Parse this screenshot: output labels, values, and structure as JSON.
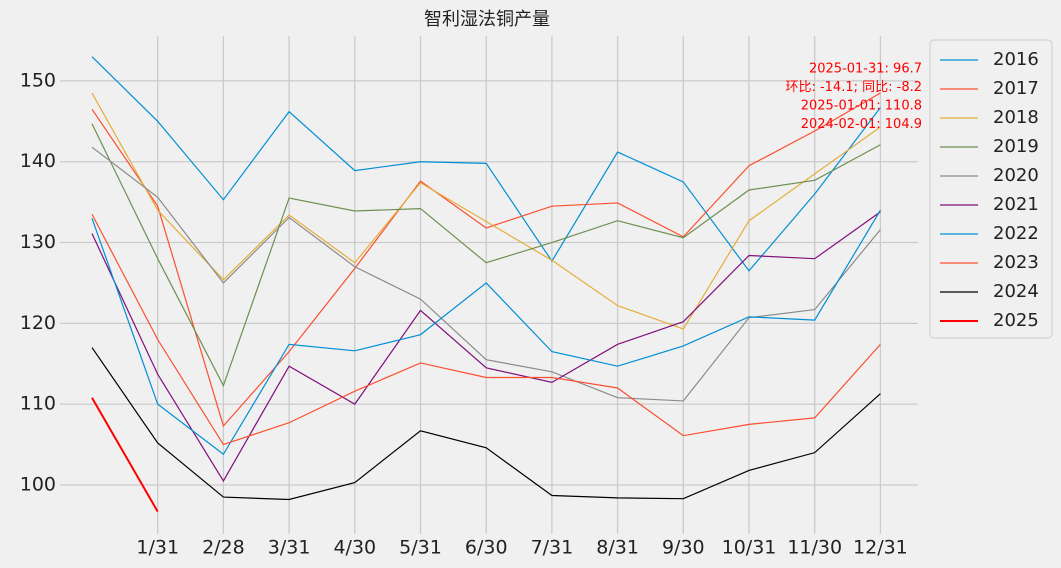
{
  "chart_data": {
    "type": "line",
    "title": "智利湿法铜产量",
    "categories": [
      null,
      "1/31",
      "2/28",
      "3/31",
      "4/30",
      "5/31",
      "6/30",
      "7/31",
      "8/31",
      "9/30",
      "10/31",
      "11/30",
      "12/31"
    ],
    "series": [
      {
        "name": "2016",
        "color": "#008fd5",
        "values": [
          153.0,
          145.0,
          135.3,
          146.2,
          138.9,
          140.0,
          139.8,
          127.7,
          141.2,
          137.5,
          126.5,
          136.0,
          146.7
        ]
      },
      {
        "name": "2017",
        "color": "#fc4f30",
        "values": [
          146.5,
          134.5,
          107.3,
          116.5,
          126.8,
          137.6,
          131.8,
          134.5,
          134.9,
          130.7,
          139.5,
          143.8,
          148.5
        ]
      },
      {
        "name": "2018",
        "color": "#e5ae38",
        "values": [
          148.5,
          134.0,
          125.4,
          133.4,
          127.5,
          137.4,
          132.6,
          127.8,
          122.2,
          119.3,
          132.7,
          138.5,
          144.3
        ]
      },
      {
        "name": "2019",
        "color": "#6d904f",
        "values": [
          144.7,
          128.0,
          112.3,
          135.5,
          133.9,
          134.2,
          127.5,
          130.0,
          132.7,
          130.6,
          136.5,
          137.7,
          142.1
        ]
      },
      {
        "name": "2020",
        "color": "#8b8b8b",
        "values": [
          141.8,
          135.6,
          125.0,
          133.1,
          127.0,
          123.0,
          115.5,
          114.0,
          110.8,
          110.4,
          120.7,
          121.7,
          131.6
        ]
      },
      {
        "name": "2021",
        "color": "#810f7c",
        "values": [
          131.1,
          113.7,
          100.5,
          114.7,
          110.0,
          121.6,
          114.5,
          112.7,
          117.4,
          120.2,
          128.4,
          128.0,
          133.8
        ]
      },
      {
        "name": "2022",
        "color": "#008fd5",
        "values": [
          133.0,
          110.0,
          103.8,
          117.4,
          116.6,
          118.6,
          125.0,
          116.5,
          114.7,
          117.2,
          120.8,
          120.4,
          134.0
        ]
      },
      {
        "name": "2023",
        "color": "#fc4f30",
        "values": [
          133.5,
          118.0,
          105.0,
          107.7,
          111.6,
          115.1,
          113.3,
          113.3,
          112.0,
          106.1,
          107.5,
          108.3,
          117.4
        ]
      },
      {
        "name": "2024",
        "color": "#000000",
        "values": [
          117.0,
          105.2,
          98.5,
          98.2,
          100.3,
          106.7,
          104.6,
          98.7,
          98.4,
          98.3,
          101.8,
          104.0,
          111.3
        ]
      },
      {
        "name": "2025",
        "color": "#ff0000",
        "values": [
          110.8,
          96.7,
          null,
          null,
          null,
          null,
          null,
          null,
          null,
          null,
          null,
          null,
          null
        ]
      }
    ],
    "annotations": [
      "2025-01-31: 96.7",
      "环比: -14.1; 同比: -8.2",
      "2025-01-01: 110.8",
      "2024-02-01: 104.9"
    ],
    "ylim": [
      92.2,
      156.3
    ],
    "yticks": [
      100,
      110,
      120,
      130,
      140,
      150
    ],
    "grid": true,
    "legend": "outside right"
  }
}
